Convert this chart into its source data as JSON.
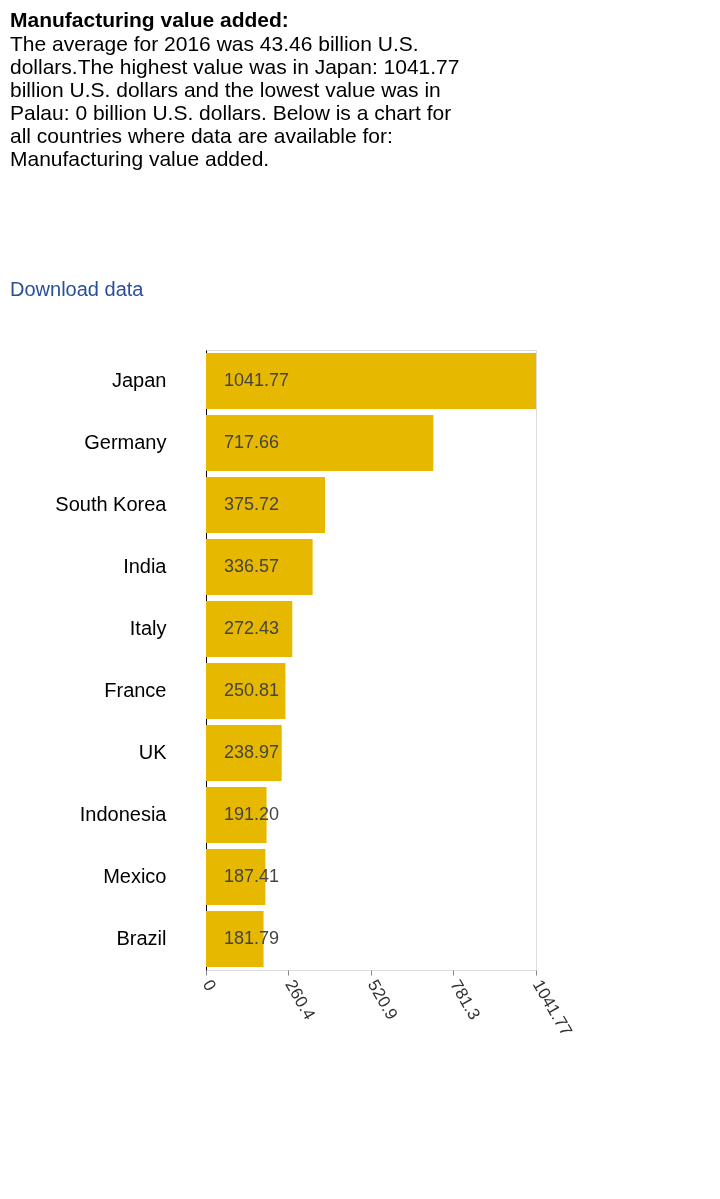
{
  "chart_data": {
    "type": "bar",
    "orientation": "horizontal",
    "title": "Manufacturing value added:",
    "subtitle": "The average for 2016 was 43.46 billion U.S. dollars.The highest value was in Japan: 1041.77 billion U.S. dollars and the lowest value was in Palau: 0 billion U.S. dollars. Below is a chart for all countries where data are available for: Manufacturing value added.",
    "annotations": [
      "Download data"
    ],
    "categories": [
      "Japan",
      "Germany",
      "South Korea",
      "India",
      "Italy",
      "France",
      "UK",
      "Indonesia",
      "Mexico",
      "Brazil"
    ],
    "values": [
      1041.77,
      717.66,
      375.72,
      336.57,
      272.43,
      250.81,
      238.97,
      191.2,
      187.41,
      181.79
    ],
    "value_labels": [
      "1041.77",
      "717.66",
      "375.72",
      "336.57",
      "272.43",
      "250.81",
      "238.97",
      "191.20",
      "187.41",
      "181.79"
    ],
    "color": "#e6b800",
    "xlim": [
      0,
      1041.77
    ],
    "xticks": [
      0,
      260.4,
      520.9,
      781.3,
      1041.77
    ],
    "grid": false
  }
}
